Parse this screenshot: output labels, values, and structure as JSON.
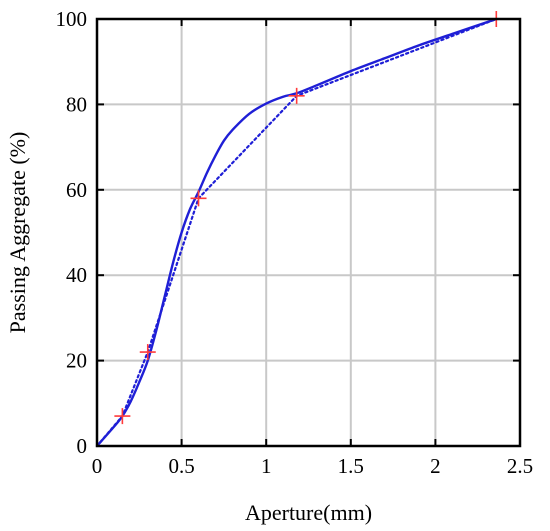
{
  "chart_data": {
    "type": "line",
    "title": "",
    "xlabel": "Aperture(mm)",
    "ylabel": "Passing Aggregate (%)",
    "xlim": [
      0,
      2.5
    ],
    "ylim": [
      0,
      100
    ],
    "x_ticks": [
      "0",
      "0.5",
      "1",
      "1.5",
      "2",
      "2.5"
    ],
    "y_ticks": [
      "0",
      "20",
      "40",
      "60",
      "80",
      "100"
    ],
    "grid": true,
    "legend": "none",
    "series": [
      {
        "style": "solid",
        "color": "#1f1fd6",
        "x": [
          0,
          0.1,
          0.15,
          0.2,
          0.25,
          0.3,
          0.35,
          0.4,
          0.45,
          0.5,
          0.55,
          0.6,
          0.65,
          0.7,
          0.75,
          0.8,
          0.9,
          1.0,
          1.1,
          1.18,
          1.3,
          1.5,
          1.7,
          1.9,
          2.1,
          2.36
        ],
        "y": [
          0,
          4.5,
          7,
          10.5,
          15,
          20,
          27,
          35,
          43,
          50,
          55.5,
          59.5,
          64,
          68,
          71.5,
          74,
          77.8,
          80.2,
          81.8,
          82.6,
          84.5,
          87.8,
          90.8,
          93.8,
          96.5,
          100
        ]
      },
      {
        "style": "dotted",
        "color": "#1f1fd6",
        "x": [
          0,
          0.15,
          0.3,
          0.6,
          1.18,
          2.36
        ],
        "y": [
          0,
          7,
          22,
          58,
          82,
          100
        ]
      },
      {
        "style": "markers",
        "marker": "plus",
        "color": "#ff3b3b",
        "x": [
          0.15,
          0.3,
          0.6,
          1.18,
          2.36
        ],
        "y": [
          7,
          22,
          58,
          82,
          100
        ]
      }
    ]
  }
}
